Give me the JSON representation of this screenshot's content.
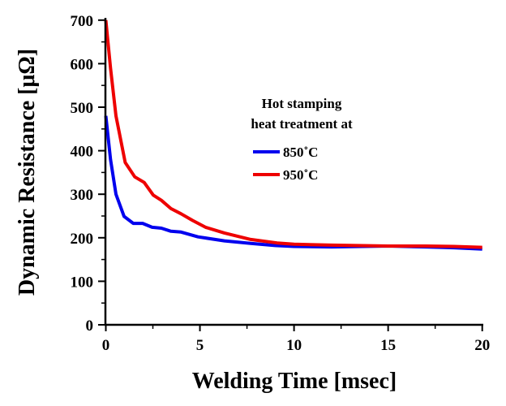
{
  "chart_data": {
    "type": "line",
    "title": "",
    "xlabel": "Welding Time [msec]",
    "ylabel": "Dynamic Resistance [μΩ]",
    "xlim": [
      0,
      20
    ],
    "ylim": [
      0,
      700
    ],
    "xticks": [
      0,
      5,
      10,
      15,
      20
    ],
    "yticks": [
      0,
      100,
      200,
      300,
      400,
      500,
      600,
      700
    ],
    "grid": false,
    "legend": {
      "title_lines": [
        "Hot stamping",
        "heat treatment at"
      ],
      "placement": "center-right"
    },
    "series": [
      {
        "name": "850˚C",
        "color": "#0000ee",
        "x": [
          0,
          0.25,
          0.54,
          0.97,
          1.46,
          1.96,
          2.46,
          2.95,
          3.46,
          4.0,
          4.9,
          6.3,
          7.7,
          9.0,
          10,
          12,
          15,
          17,
          18.5,
          20
        ],
        "y": [
          480,
          380,
          300,
          249,
          233,
          233,
          224,
          222,
          215,
          213,
          202,
          193,
          187,
          182,
          180,
          179,
          181,
          179,
          177,
          174
        ]
      },
      {
        "name": "950˚C",
        "color": "#ee0000",
        "x": [
          0,
          0.25,
          0.54,
          1.03,
          1.54,
          2.04,
          2.52,
          2.95,
          3.46,
          4.0,
          4.6,
          5.3,
          6.3,
          7.7,
          9.1,
          10,
          12,
          15,
          17,
          18.5,
          20
        ],
        "y": [
          700,
          590,
          480,
          373,
          340,
          327,
          298,
          286,
          267,
          255,
          240,
          224,
          211,
          196,
          188,
          185,
          183,
          181,
          181,
          180,
          178
        ]
      }
    ]
  }
}
